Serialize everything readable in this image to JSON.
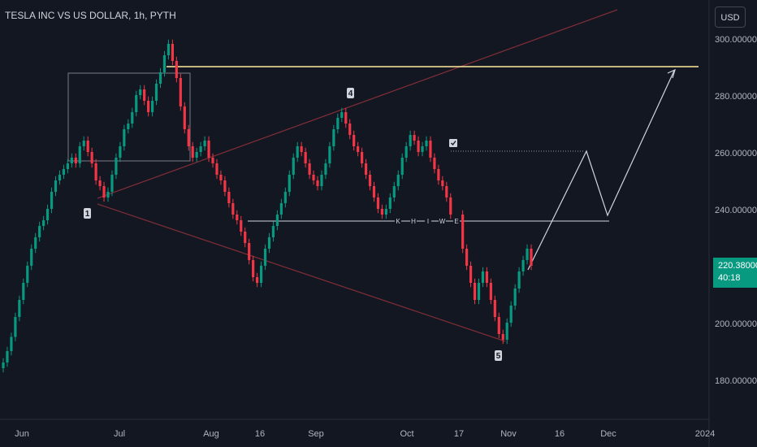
{
  "header": {
    "title": "TESLA INC VS US DOLLAR, 1h, PYTH",
    "currency_button": "USD"
  },
  "price_tag": {
    "price": "220.38000",
    "countdown": "40:18",
    "color": "#089981"
  },
  "colors": {
    "background": "#131722",
    "up": "#089981",
    "down": "#f23645",
    "channel": "#7b2d36",
    "level": "#ffffff",
    "resistance": "#ffeb9c"
  },
  "chart_data": {
    "type": "candlestick",
    "y_axis": {
      "ticks": [
        180,
        200,
        220,
        240,
        260,
        280,
        300
      ],
      "tick_labels": [
        "180.00000",
        "200.00000",
        "220.00000",
        "240.00000",
        "260.00000",
        "280.00000",
        "300.00000"
      ],
      "range": [
        172,
        311
      ]
    },
    "x_axis": {
      "labels": [
        "Jun",
        "Jul",
        "Aug",
        "16",
        "Sep",
        "Oct",
        "17",
        "Nov",
        "16",
        "Dec",
        "2024"
      ]
    },
    "series": [
      {
        "closes": [
          186,
          190,
          195,
          202,
          208,
          214,
          220,
          226,
          230,
          234,
          236,
          240,
          246,
          250,
          252,
          254,
          256,
          258,
          256,
          262,
          264,
          260,
          256,
          250,
          248,
          244,
          246,
          252,
          258,
          262,
          268,
          270,
          274,
          280,
          282,
          278,
          274,
          278,
          284,
          288,
          294,
          298,
          292,
          286,
          276,
          268,
          262,
          258,
          260,
          262,
          264,
          258,
          256,
          252,
          250,
          246,
          242,
          238,
          236,
          232,
          228,
          222,
          216,
          214,
          220,
          226,
          230,
          234,
          238,
          242,
          246,
          252,
          258,
          262,
          260,
          256,
          252,
          250,
          248,
          252,
          256,
          262,
          268,
          272,
          274,
          270,
          266,
          262,
          260,
          256,
          252,
          248,
          244,
          240,
          238,
          240,
          244,
          248,
          252,
          258,
          262,
          266,
          264,
          260,
          262,
          264,
          258,
          254,
          250,
          248,
          244,
          238,
          null,
          null,
          226,
          220,
          214,
          208,
          214,
          218,
          214,
          208,
          202,
          196,
          194,
          200,
          206,
          212,
          218,
          222,
          226,
          220
        ]
      }
    ],
    "annotations": {
      "wave_labels": [
        "1",
        "4",
        "5"
      ],
      "level_markers": [
        "K",
        "H",
        "I",
        "W",
        "E"
      ],
      "horizontal_lines": [
        290,
        236
      ],
      "projection_path": [
        [
          221,
          221
        ],
        [
          262,
          261
        ],
        [
          238,
          238
        ],
        [
          290,
          290
        ]
      ]
    }
  }
}
